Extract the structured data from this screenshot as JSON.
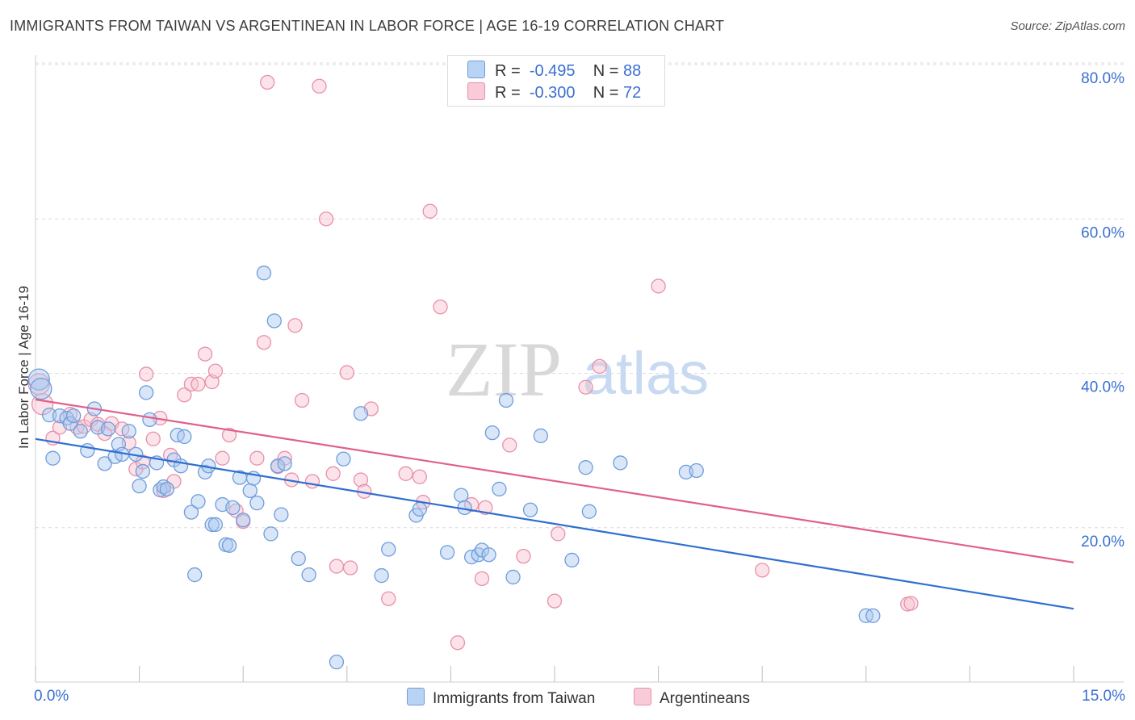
{
  "title": "IMMIGRANTS FROM TAIWAN VS ARGENTINEAN IN LABOR FORCE | AGE 16-19 CORRELATION CHART",
  "source": "Source: ZipAtlas.com",
  "watermark": {
    "zip": "ZIP",
    "atlas": "atlas"
  },
  "legend": {
    "rows": [
      {
        "r_label": "R =",
        "r_value": "-0.495",
        "n_label": "N =",
        "n_value": "88"
      },
      {
        "r_label": "R =",
        "r_value": "-0.300",
        "n_label": "N =",
        "n_value": "72"
      }
    ]
  },
  "bottom_legend": {
    "series1": "Immigrants from Taiwan",
    "series2": "Argentineans"
  },
  "axes": {
    "x_min_label": "0.0%",
    "x_max_label": "15.0%"
  },
  "colors": {
    "blue_fill": "#a9c8f0",
    "blue_stroke": "#6f9ddc",
    "blue_line": "#2f6fd0",
    "pink_fill": "#f6c0cf",
    "pink_stroke": "#e890ab",
    "pink_line": "#e0608c",
    "tick_label": "#3a6fd0",
    "grid": "#dcdcdc"
  },
  "chart_data": {
    "type": "scatter",
    "title": "IMMIGRANTS FROM TAIWAN VS ARGENTINEAN IN LABOR FORCE | AGE 16-19 CORRELATION CHART",
    "xlabel": "",
    "ylabel": "In Labor Force | Age 16-19",
    "xlim": [
      0,
      15
    ],
    "ylim": [
      0,
      82
    ],
    "y_ticks": [
      20,
      40,
      60,
      80
    ],
    "y_tick_labels": [
      "20.0%",
      "40.0%",
      "60.0%",
      "80.0%"
    ],
    "grid": true,
    "legend_position": "top-center",
    "series": [
      {
        "name": "Immigrants from Taiwan",
        "r": -0.495,
        "n": 88,
        "trend": [
          [
            0,
            31.5
          ],
          [
            15,
            9.5
          ]
        ],
        "points": [
          [
            0.05,
            39.2
          ],
          [
            0.08,
            38.0
          ],
          [
            0.2,
            34.6
          ],
          [
            0.25,
            29.0
          ],
          [
            0.35,
            34.5
          ],
          [
            0.45,
            34.2
          ],
          [
            0.5,
            33.5
          ],
          [
            0.55,
            34.5
          ],
          [
            0.65,
            32.5
          ],
          [
            0.75,
            30.0
          ],
          [
            0.85,
            35.4
          ],
          [
            0.9,
            33.0
          ],
          [
            1.0,
            28.3
          ],
          [
            1.05,
            32.8
          ],
          [
            1.15,
            29.2
          ],
          [
            1.2,
            30.8
          ],
          [
            1.25,
            29.5
          ],
          [
            1.35,
            32.5
          ],
          [
            1.45,
            29.5
          ],
          [
            1.5,
            25.4
          ],
          [
            1.55,
            27.3
          ],
          [
            1.6,
            37.5
          ],
          [
            1.65,
            34.0
          ],
          [
            1.75,
            28.4
          ],
          [
            1.8,
            24.9
          ],
          [
            1.85,
            25.3
          ],
          [
            1.9,
            25.0
          ],
          [
            2.0,
            28.8
          ],
          [
            2.05,
            32.0
          ],
          [
            2.1,
            28.0
          ],
          [
            2.15,
            31.8
          ],
          [
            2.25,
            22.0
          ],
          [
            2.3,
            13.9
          ],
          [
            2.35,
            23.4
          ],
          [
            2.45,
            27.2
          ],
          [
            2.5,
            28.0
          ],
          [
            2.55,
            20.4
          ],
          [
            2.6,
            20.4
          ],
          [
            2.7,
            23.0
          ],
          [
            2.75,
            17.8
          ],
          [
            2.8,
            17.7
          ],
          [
            2.85,
            22.6
          ],
          [
            2.95,
            26.5
          ],
          [
            3.0,
            21.0
          ],
          [
            3.1,
            24.8
          ],
          [
            3.15,
            26.4
          ],
          [
            3.2,
            23.2
          ],
          [
            3.3,
            53.0
          ],
          [
            3.4,
            19.2
          ],
          [
            3.45,
            46.8
          ],
          [
            3.5,
            28.0
          ],
          [
            3.55,
            21.7
          ],
          [
            3.6,
            28.3
          ],
          [
            3.8,
            16.0
          ],
          [
            3.95,
            13.9
          ],
          [
            4.35,
            2.6
          ],
          [
            4.45,
            28.9
          ],
          [
            4.7,
            34.8
          ],
          [
            5.0,
            13.8
          ],
          [
            5.1,
            17.2
          ],
          [
            5.5,
            21.6
          ],
          [
            5.55,
            22.4
          ],
          [
            5.95,
            16.8
          ],
          [
            6.15,
            24.2
          ],
          [
            6.2,
            22.6
          ],
          [
            6.3,
            16.2
          ],
          [
            6.4,
            16.5
          ],
          [
            6.45,
            17.1
          ],
          [
            6.55,
            16.5
          ],
          [
            6.6,
            32.3
          ],
          [
            6.7,
            25.0
          ],
          [
            6.8,
            36.5
          ],
          [
            6.9,
            13.6
          ],
          [
            7.15,
            22.3
          ],
          [
            7.3,
            31.9
          ],
          [
            7.75,
            15.8
          ],
          [
            7.95,
            27.8
          ],
          [
            8.0,
            22.1
          ],
          [
            8.45,
            28.4
          ],
          [
            9.4,
            27.2
          ],
          [
            9.55,
            27.4
          ],
          [
            12.0,
            8.6
          ],
          [
            12.1,
            8.6
          ]
        ]
      },
      {
        "name": "Argentineans",
        "r": -0.3,
        "n": 72,
        "trend": [
          [
            0,
            36.6
          ],
          [
            15,
            15.5
          ]
        ],
        "points": [
          [
            0.05,
            38.6
          ],
          [
            0.1,
            36.0
          ],
          [
            0.25,
            31.6
          ],
          [
            0.35,
            33.0
          ],
          [
            0.5,
            34.7
          ],
          [
            0.6,
            33.0
          ],
          [
            0.7,
            33.1
          ],
          [
            0.8,
            34.0
          ],
          [
            0.9,
            33.4
          ],
          [
            1.0,
            32.2
          ],
          [
            1.1,
            33.5
          ],
          [
            1.25,
            32.8
          ],
          [
            1.35,
            31.0
          ],
          [
            1.45,
            27.6
          ],
          [
            1.55,
            28.5
          ],
          [
            1.6,
            39.9
          ],
          [
            1.7,
            31.5
          ],
          [
            1.8,
            34.2
          ],
          [
            1.85,
            24.8
          ],
          [
            1.95,
            29.4
          ],
          [
            2.0,
            26.0
          ],
          [
            2.15,
            37.2
          ],
          [
            2.25,
            38.6
          ],
          [
            2.35,
            38.6
          ],
          [
            2.45,
            42.5
          ],
          [
            2.55,
            38.9
          ],
          [
            2.6,
            40.3
          ],
          [
            2.7,
            29.0
          ],
          [
            2.8,
            32.0
          ],
          [
            2.9,
            22.2
          ],
          [
            3.0,
            20.8
          ],
          [
            3.2,
            29.0
          ],
          [
            3.3,
            44.0
          ],
          [
            3.35,
            77.7
          ],
          [
            3.5,
            27.9
          ],
          [
            3.6,
            29.0
          ],
          [
            3.7,
            26.2
          ],
          [
            3.75,
            46.2
          ],
          [
            3.85,
            36.5
          ],
          [
            4.0,
            26.0
          ],
          [
            4.1,
            77.2
          ],
          [
            4.2,
            60.0
          ],
          [
            4.3,
            27.0
          ],
          [
            4.35,
            15.0
          ],
          [
            4.5,
            40.1
          ],
          [
            4.55,
            14.8
          ],
          [
            4.7,
            26.2
          ],
          [
            4.75,
            24.7
          ],
          [
            4.85,
            35.4
          ],
          [
            5.1,
            10.8
          ],
          [
            5.35,
            27.0
          ],
          [
            5.55,
            26.6
          ],
          [
            5.6,
            23.3
          ],
          [
            5.7,
            61.0
          ],
          [
            5.85,
            48.6
          ],
          [
            6.1,
            5.1
          ],
          [
            6.3,
            23.0
          ],
          [
            6.45,
            13.4
          ],
          [
            6.5,
            22.6
          ],
          [
            6.85,
            30.7
          ],
          [
            7.05,
            16.3
          ],
          [
            7.5,
            10.5
          ],
          [
            7.55,
            19.2
          ],
          [
            7.95,
            38.2
          ],
          [
            8.15,
            40.9
          ],
          [
            9.0,
            51.3
          ],
          [
            10.5,
            14.5
          ],
          [
            12.6,
            10.1
          ],
          [
            12.65,
            10.2
          ]
        ]
      }
    ]
  }
}
